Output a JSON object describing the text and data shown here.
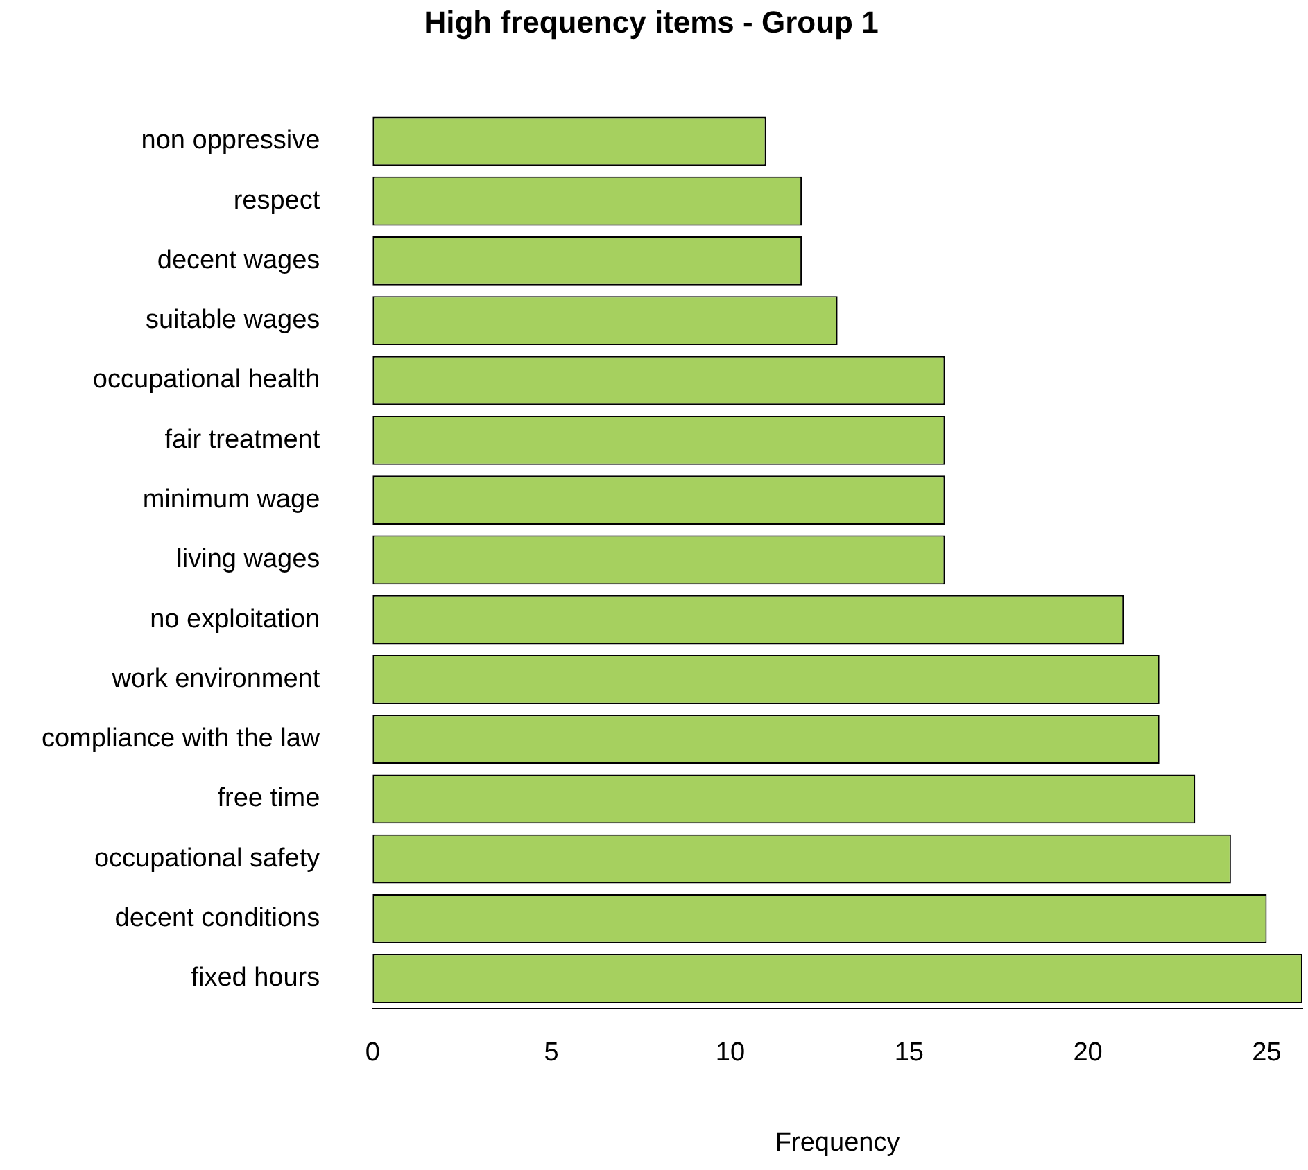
{
  "chart_data": {
    "type": "bar",
    "orientation": "horizontal",
    "title": "High frequency items - Group 1",
    "xlabel": "Frequency",
    "categories": [
      "non oppressive",
      "respect",
      "decent wages",
      "suitable wages",
      "occupational health",
      "fair treatment",
      "minimum wage",
      "living wages",
      "no exploitation",
      "work environment",
      "compliance with the law",
      "free time",
      "occupational safety",
      "decent conditions",
      "fixed hours"
    ],
    "values": [
      11,
      12,
      12,
      13,
      16,
      16,
      16,
      16,
      21,
      22,
      22,
      23,
      24,
      25,
      26
    ],
    "color": "#a6d05f",
    "xlim": [
      0,
      26
    ],
    "xticks": [
      0,
      5,
      10,
      15,
      20,
      25
    ],
    "legend": false
  }
}
